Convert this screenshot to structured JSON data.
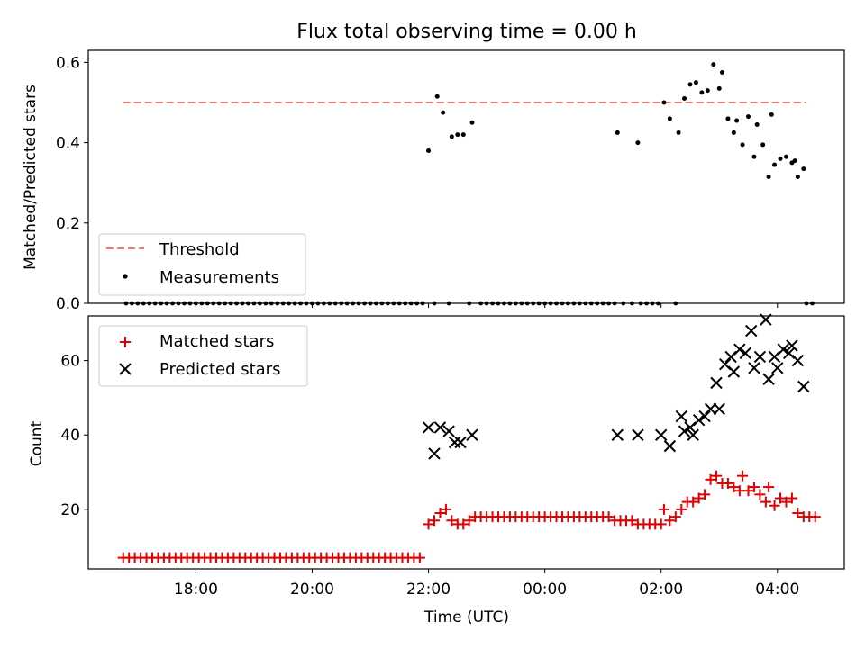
{
  "figure": {
    "title": "Flux total observing time = 0.00 h",
    "xlabel": "Time (UTC)",
    "x_ticks": [
      "18:00",
      "20:00",
      "22:00",
      "00:00",
      "02:00",
      "04:00"
    ]
  },
  "colors": {
    "threshold": "#f07c7c",
    "measurement": "#000000",
    "matched": "#e00000",
    "predicted": "#000000"
  },
  "chart_data": [
    {
      "type": "scatter",
      "ylabel": "Matched/Predicted stars",
      "xlim_hours": [
        16.15,
        29.15
      ],
      "ylim": [
        0,
        0.63
      ],
      "y_ticks": [
        "0.0",
        "0.2",
        "0.4",
        "0.6"
      ],
      "legend": {
        "placement": "lower-left",
        "entries": [
          "Threshold",
          "Measurements"
        ]
      },
      "threshold": {
        "name": "Threshold",
        "value": 0.5,
        "x_start_hours": 16.75,
        "x_end_hours": 28.5
      },
      "measurements": {
        "name": "Measurements",
        "zero_x_hours": [
          16.8,
          16.9,
          17.0,
          17.1,
          17.2,
          17.3,
          17.4,
          17.5,
          17.6,
          17.7,
          17.8,
          17.9,
          18.0,
          18.1,
          18.2,
          18.3,
          18.4,
          18.5,
          18.6,
          18.7,
          18.8,
          18.9,
          19.0,
          19.1,
          19.2,
          19.3,
          19.4,
          19.5,
          19.6,
          19.7,
          19.8,
          19.9,
          20.0,
          20.1,
          20.2,
          20.3,
          20.4,
          20.5,
          20.6,
          20.7,
          20.8,
          20.9,
          21.0,
          21.1,
          21.2,
          21.3,
          21.4,
          21.5,
          21.6,
          21.7,
          21.8,
          21.9,
          22.1,
          22.35,
          22.7,
          22.9,
          23.0,
          23.1,
          23.2,
          23.3,
          23.4,
          23.5,
          23.6,
          23.7,
          23.8,
          23.9,
          24.0,
          24.1,
          24.2,
          24.3,
          24.4,
          24.5,
          24.6,
          24.7,
          24.8,
          24.9,
          25.0,
          25.1,
          25.2,
          25.35,
          25.5,
          25.65,
          25.75,
          25.85,
          25.95,
          26.25,
          28.5,
          28.6
        ],
        "points": [
          [
            22.0,
            0.38
          ],
          [
            22.15,
            0.515
          ],
          [
            22.25,
            0.475
          ],
          [
            22.4,
            0.415
          ],
          [
            22.5,
            0.42
          ],
          [
            22.6,
            0.42
          ],
          [
            22.75,
            0.45
          ],
          [
            25.25,
            0.425
          ],
          [
            25.6,
            0.4
          ],
          [
            26.05,
            0.5
          ],
          [
            26.15,
            0.46
          ],
          [
            26.3,
            0.425
          ],
          [
            26.4,
            0.51
          ],
          [
            26.5,
            0.545
          ],
          [
            26.6,
            0.55
          ],
          [
            26.7,
            0.525
          ],
          [
            26.8,
            0.53
          ],
          [
            26.9,
            0.595
          ],
          [
            27.0,
            0.535
          ],
          [
            27.05,
            0.575
          ],
          [
            27.15,
            0.46
          ],
          [
            27.25,
            0.425
          ],
          [
            27.3,
            0.455
          ],
          [
            27.4,
            0.395
          ],
          [
            27.5,
            0.465
          ],
          [
            27.6,
            0.365
          ],
          [
            27.65,
            0.445
          ],
          [
            27.75,
            0.395
          ],
          [
            27.85,
            0.315
          ],
          [
            27.9,
            0.47
          ],
          [
            27.95,
            0.345
          ],
          [
            28.05,
            0.36
          ],
          [
            28.15,
            0.365
          ],
          [
            28.25,
            0.35
          ],
          [
            28.3,
            0.355
          ],
          [
            28.35,
            0.315
          ],
          [
            28.45,
            0.335
          ]
        ]
      }
    },
    {
      "type": "scatter",
      "ylabel": "Count",
      "xlim_hours": [
        16.15,
        29.15
      ],
      "ylim": [
        4,
        72
      ],
      "y_ticks": [
        "20",
        "40",
        "60"
      ],
      "legend": {
        "placement": "top-left",
        "entries": [
          "Matched stars",
          "Predicted stars"
        ]
      },
      "series": [
        {
          "name": "Matched stars",
          "marker": "plus",
          "constant_segments": [
            {
              "x_start_hours": 16.75,
              "x_end_hours": 21.9,
              "step_hours": 0.1,
              "value": 7
            },
            {
              "x_start_hours": 22.8,
              "x_end_hours": 25.1,
              "step_hours": 0.1,
              "value": 18
            }
          ],
          "points": [
            [
              22.0,
              16
            ],
            [
              22.1,
              17
            ],
            [
              22.2,
              19
            ],
            [
              22.3,
              20
            ],
            [
              22.4,
              17
            ],
            [
              22.5,
              16
            ],
            [
              22.6,
              16
            ],
            [
              22.7,
              17
            ],
            [
              25.2,
              17
            ],
            [
              25.3,
              17
            ],
            [
              25.4,
              17
            ],
            [
              25.5,
              17
            ],
            [
              25.6,
              16
            ],
            [
              25.7,
              16
            ],
            [
              25.8,
              16
            ],
            [
              25.9,
              16
            ],
            [
              26.0,
              16
            ],
            [
              26.05,
              20
            ],
            [
              26.15,
              17
            ],
            [
              26.25,
              18
            ],
            [
              26.35,
              20
            ],
            [
              26.45,
              22
            ],
            [
              26.55,
              22
            ],
            [
              26.65,
              23
            ],
            [
              26.75,
              24
            ],
            [
              26.85,
              28
            ],
            [
              26.95,
              29
            ],
            [
              27.05,
              27
            ],
            [
              27.15,
              27
            ],
            [
              27.25,
              26
            ],
            [
              27.35,
              25
            ],
            [
              27.4,
              29
            ],
            [
              27.5,
              25
            ],
            [
              27.6,
              26
            ],
            [
              27.7,
              24
            ],
            [
              27.8,
              22
            ],
            [
              27.85,
              26
            ],
            [
              27.95,
              21
            ],
            [
              28.05,
              23
            ],
            [
              28.15,
              22
            ],
            [
              28.25,
              23
            ],
            [
              28.35,
              19
            ],
            [
              28.45,
              18
            ],
            [
              28.55,
              18
            ],
            [
              28.65,
              18
            ]
          ]
        },
        {
          "name": "Predicted stars",
          "marker": "x",
          "points": [
            [
              22.0,
              42
            ],
            [
              22.1,
              35
            ],
            [
              22.2,
              42
            ],
            [
              22.35,
              41
            ],
            [
              22.45,
              38
            ],
            [
              22.55,
              38
            ],
            [
              22.75,
              40
            ],
            [
              25.25,
              40
            ],
            [
              25.6,
              40
            ],
            [
              26.0,
              40
            ],
            [
              26.15,
              37
            ],
            [
              26.35,
              45
            ],
            [
              26.4,
              41
            ],
            [
              26.5,
              42
            ],
            [
              26.55,
              40
            ],
            [
              26.65,
              44
            ],
            [
              26.75,
              45
            ],
            [
              26.85,
              47
            ],
            [
              26.95,
              54
            ],
            [
              27.0,
              47
            ],
            [
              27.1,
              59
            ],
            [
              27.2,
              61
            ],
            [
              27.25,
              57
            ],
            [
              27.35,
              63
            ],
            [
              27.45,
              62
            ],
            [
              27.55,
              68
            ],
            [
              27.6,
              58
            ],
            [
              27.7,
              61
            ],
            [
              27.8,
              71
            ],
            [
              27.85,
              55
            ],
            [
              27.95,
              61
            ],
            [
              28.0,
              58
            ],
            [
              28.1,
              63
            ],
            [
              28.2,
              62
            ],
            [
              28.25,
              64
            ],
            [
              28.35,
              60
            ],
            [
              28.45,
              53
            ]
          ]
        }
      ]
    }
  ]
}
